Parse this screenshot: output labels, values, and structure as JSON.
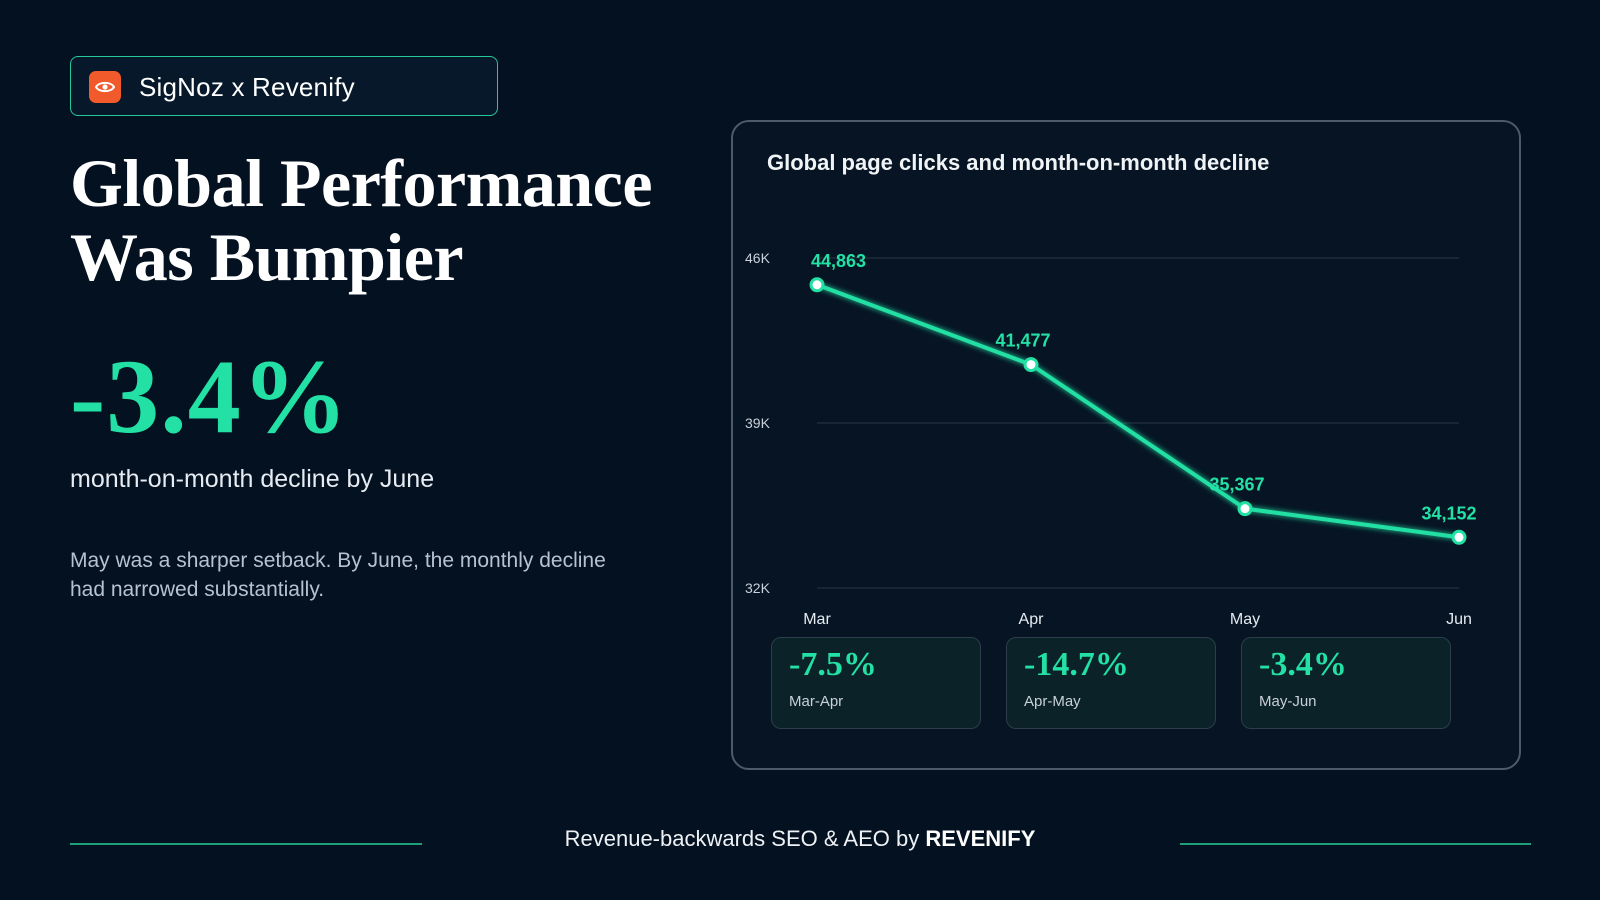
{
  "brand": {
    "label": "SigNoz x Revenify",
    "icon": "eye-icon",
    "icon_color": "#f15a2b"
  },
  "headline": {
    "line1": "Global Performance",
    "line2": "Was Bumpier"
  },
  "stat": {
    "value": "-3.4%",
    "caption": "month-on-month decline by June"
  },
  "body": "May was a sharper setback. By June, the monthly decline had narrowed substantially.",
  "colors": {
    "background": "#041121",
    "accent": "#23e0a4",
    "card_border": "#4f5a68"
  },
  "chart_data": {
    "type": "line",
    "title": "Global page clicks and month-on-month decline",
    "categories": [
      "Mar",
      "Apr",
      "May",
      "Jun"
    ],
    "series": [
      {
        "values": [
          44863,
          41477,
          35367,
          34152
        ],
        "labels": [
          "44,863",
          "41,477",
          "35,367",
          "34,152"
        ]
      }
    ],
    "ylim": [
      32000,
      46000
    ],
    "yticks": [
      {
        "value": 46000,
        "label": "46K"
      },
      {
        "value": 39000,
        "label": "39K"
      },
      {
        "value": 32000,
        "label": "32K"
      }
    ],
    "grid": true,
    "xlabel": "",
    "ylabel": ""
  },
  "deltas": [
    {
      "value": "-7.5%",
      "label": "Mar-Apr"
    },
    {
      "value": "-14.7%",
      "label": "Apr-May"
    },
    {
      "value": "-3.4%",
      "label": "May-Jun"
    }
  ],
  "footer": {
    "prefix": "Revenue-backwards SEO & AEO by",
    "brand": "REVENIFY"
  }
}
